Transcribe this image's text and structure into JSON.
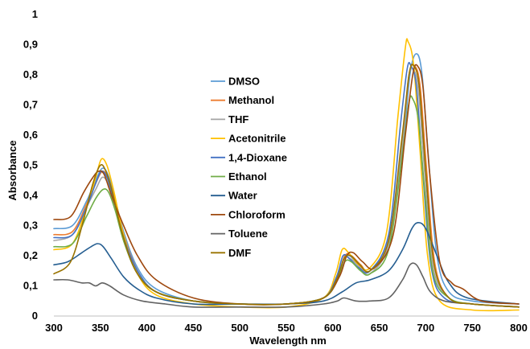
{
  "chart_data": {
    "type": "line",
    "xlabel": "Wavelength nm",
    "ylabel": "Absorbance",
    "xlim": [
      300,
      800
    ],
    "ylim": [
      0,
      1
    ],
    "x_ticks": [
      300,
      350,
      400,
      450,
      500,
      550,
      600,
      650,
      700,
      750,
      800
    ],
    "y_ticks": [
      "0",
      "0,1",
      "0,2",
      "0,3",
      "0,4",
      "0,5",
      "0,6",
      "0,7",
      "0,8",
      "0,9",
      "1"
    ],
    "grid": false,
    "legend_position": "center-left",
    "series": [
      {
        "name": "DMSO",
        "color": "#5b9bd5",
        "points": [
          [
            300,
            0.29
          ],
          [
            320,
            0.3
          ],
          [
            335,
            0.38
          ],
          [
            345,
            0.45
          ],
          [
            352,
            0.49
          ],
          [
            358,
            0.47
          ],
          [
            365,
            0.4
          ],
          [
            375,
            0.28
          ],
          [
            390,
            0.16
          ],
          [
            410,
            0.09
          ],
          [
            450,
            0.05
          ],
          [
            500,
            0.04
          ],
          [
            550,
            0.04
          ],
          [
            590,
            0.06
          ],
          [
            605,
            0.12
          ],
          [
            612,
            0.19
          ],
          [
            618,
            0.2
          ],
          [
            628,
            0.17
          ],
          [
            640,
            0.15
          ],
          [
            660,
            0.24
          ],
          [
            675,
            0.55
          ],
          [
            683,
            0.8
          ],
          [
            690,
            0.87
          ],
          [
            696,
            0.8
          ],
          [
            703,
            0.52
          ],
          [
            712,
            0.2
          ],
          [
            725,
            0.08
          ],
          [
            750,
            0.05
          ],
          [
            800,
            0.04
          ]
        ]
      },
      {
        "name": "Methanol",
        "color": "#ed7d31",
        "points": [
          [
            300,
            0.27
          ],
          [
            320,
            0.28
          ],
          [
            335,
            0.37
          ],
          [
            345,
            0.44
          ],
          [
            352,
            0.48
          ],
          [
            358,
            0.46
          ],
          [
            365,
            0.39
          ],
          [
            375,
            0.27
          ],
          [
            390,
            0.15
          ],
          [
            410,
            0.08
          ],
          [
            450,
            0.05
          ],
          [
            500,
            0.04
          ],
          [
            550,
            0.04
          ],
          [
            590,
            0.06
          ],
          [
            605,
            0.13
          ],
          [
            613,
            0.2
          ],
          [
            620,
            0.2
          ],
          [
            630,
            0.17
          ],
          [
            640,
            0.15
          ],
          [
            660,
            0.25
          ],
          [
            675,
            0.58
          ],
          [
            682,
            0.8
          ],
          [
            688,
            0.83
          ],
          [
            694,
            0.76
          ],
          [
            701,
            0.48
          ],
          [
            710,
            0.17
          ],
          [
            725,
            0.06
          ],
          [
            750,
            0.04
          ],
          [
            800,
            0.03
          ]
        ]
      },
      {
        "name": "THF",
        "color": "#a5a5a5",
        "points": [
          [
            300,
            0.25
          ],
          [
            320,
            0.27
          ],
          [
            335,
            0.36
          ],
          [
            345,
            0.42
          ],
          [
            352,
            0.46
          ],
          [
            358,
            0.44
          ],
          [
            365,
            0.37
          ],
          [
            375,
            0.25
          ],
          [
            390,
            0.14
          ],
          [
            410,
            0.08
          ],
          [
            450,
            0.05
          ],
          [
            500,
            0.04
          ],
          [
            550,
            0.04
          ],
          [
            590,
            0.06
          ],
          [
            605,
            0.12
          ],
          [
            612,
            0.19
          ],
          [
            619,
            0.19
          ],
          [
            630,
            0.16
          ],
          [
            640,
            0.14
          ],
          [
            660,
            0.24
          ],
          [
            675,
            0.57
          ],
          [
            681,
            0.78
          ],
          [
            686,
            0.82
          ],
          [
            692,
            0.75
          ],
          [
            699,
            0.47
          ],
          [
            708,
            0.16
          ],
          [
            725,
            0.06
          ],
          [
            750,
            0.04
          ],
          [
            800,
            0.03
          ]
        ]
      },
      {
        "name": "Acetonitrile",
        "color": "#ffc000",
        "points": [
          [
            300,
            0.22
          ],
          [
            320,
            0.24
          ],
          [
            335,
            0.36
          ],
          [
            345,
            0.46
          ],
          [
            351,
            0.52
          ],
          [
            357,
            0.5
          ],
          [
            364,
            0.42
          ],
          [
            375,
            0.27
          ],
          [
            390,
            0.14
          ],
          [
            410,
            0.07
          ],
          [
            450,
            0.04
          ],
          [
            500,
            0.03
          ],
          [
            550,
            0.03
          ],
          [
            590,
            0.06
          ],
          [
            603,
            0.14
          ],
          [
            610,
            0.22
          ],
          [
            617,
            0.21
          ],
          [
            628,
            0.17
          ],
          [
            640,
            0.16
          ],
          [
            658,
            0.28
          ],
          [
            670,
            0.66
          ],
          [
            678,
            0.89
          ],
          [
            681,
            0.91
          ],
          [
            687,
            0.83
          ],
          [
            694,
            0.54
          ],
          [
            702,
            0.2
          ],
          [
            715,
            0.05
          ],
          [
            750,
            0.02
          ],
          [
            800,
            0.02
          ]
        ]
      },
      {
        "name": "1,4-Dioxane",
        "color": "#4472c4",
        "points": [
          [
            300,
            0.26
          ],
          [
            320,
            0.27
          ],
          [
            335,
            0.36
          ],
          [
            345,
            0.44
          ],
          [
            351,
            0.48
          ],
          [
            357,
            0.46
          ],
          [
            364,
            0.39
          ],
          [
            375,
            0.26
          ],
          [
            390,
            0.15
          ],
          [
            410,
            0.08
          ],
          [
            450,
            0.05
          ],
          [
            500,
            0.04
          ],
          [
            550,
            0.04
          ],
          [
            590,
            0.06
          ],
          [
            604,
            0.13
          ],
          [
            611,
            0.2
          ],
          [
            618,
            0.19
          ],
          [
            628,
            0.16
          ],
          [
            640,
            0.15
          ],
          [
            660,
            0.27
          ],
          [
            673,
            0.64
          ],
          [
            680,
            0.82
          ],
          [
            684,
            0.83
          ],
          [
            690,
            0.76
          ],
          [
            697,
            0.47
          ],
          [
            706,
            0.16
          ],
          [
            720,
            0.06
          ],
          [
            750,
            0.04
          ],
          [
            800,
            0.03
          ]
        ]
      },
      {
        "name": "Ethanol",
        "color": "#70ad47",
        "points": [
          [
            300,
            0.23
          ],
          [
            320,
            0.24
          ],
          [
            335,
            0.33
          ],
          [
            345,
            0.39
          ],
          [
            353,
            0.42
          ],
          [
            359,
            0.41
          ],
          [
            366,
            0.35
          ],
          [
            376,
            0.24
          ],
          [
            390,
            0.14
          ],
          [
            410,
            0.08
          ],
          [
            450,
            0.05
          ],
          [
            500,
            0.04
          ],
          [
            550,
            0.04
          ],
          [
            590,
            0.06
          ],
          [
            605,
            0.12
          ],
          [
            613,
            0.18
          ],
          [
            620,
            0.18
          ],
          [
            630,
            0.15
          ],
          [
            640,
            0.14
          ],
          [
            660,
            0.22
          ],
          [
            675,
            0.54
          ],
          [
            682,
            0.71
          ],
          [
            686,
            0.72
          ],
          [
            692,
            0.65
          ],
          [
            699,
            0.41
          ],
          [
            708,
            0.14
          ],
          [
            725,
            0.06
          ],
          [
            750,
            0.04
          ],
          [
            800,
            0.03
          ]
        ]
      },
      {
        "name": "Water",
        "color": "#255e91",
        "points": [
          [
            300,
            0.17
          ],
          [
            315,
            0.18
          ],
          [
            330,
            0.21
          ],
          [
            340,
            0.23
          ],
          [
            347,
            0.24
          ],
          [
            353,
            0.23
          ],
          [
            362,
            0.19
          ],
          [
            375,
            0.13
          ],
          [
            390,
            0.09
          ],
          [
            410,
            0.06
          ],
          [
            450,
            0.04
          ],
          [
            500,
            0.04
          ],
          [
            550,
            0.04
          ],
          [
            590,
            0.05
          ],
          [
            610,
            0.08
          ],
          [
            625,
            0.11
          ],
          [
            640,
            0.12
          ],
          [
            660,
            0.15
          ],
          [
            675,
            0.22
          ],
          [
            685,
            0.29
          ],
          [
            692,
            0.31
          ],
          [
            700,
            0.29
          ],
          [
            712,
            0.2
          ],
          [
            725,
            0.11
          ],
          [
            745,
            0.06
          ],
          [
            800,
            0.04
          ]
        ]
      },
      {
        "name": "Chloroform",
        "color": "#9e480e",
        "points": [
          [
            300,
            0.32
          ],
          [
            318,
            0.33
          ],
          [
            332,
            0.41
          ],
          [
            342,
            0.46
          ],
          [
            348,
            0.48
          ],
          [
            354,
            0.47
          ],
          [
            362,
            0.4
          ],
          [
            375,
            0.3
          ],
          [
            390,
            0.2
          ],
          [
            410,
            0.12
          ],
          [
            450,
            0.06
          ],
          [
            500,
            0.04
          ],
          [
            550,
            0.04
          ],
          [
            590,
            0.06
          ],
          [
            607,
            0.13
          ],
          [
            615,
            0.2
          ],
          [
            622,
            0.21
          ],
          [
            632,
            0.18
          ],
          [
            645,
            0.16
          ],
          [
            665,
            0.27
          ],
          [
            678,
            0.6
          ],
          [
            686,
            0.8
          ],
          [
            691,
            0.83
          ],
          [
            697,
            0.76
          ],
          [
            704,
            0.48
          ],
          [
            715,
            0.18
          ],
          [
            728,
            0.11
          ],
          [
            740,
            0.09
          ],
          [
            760,
            0.05
          ],
          [
            800,
            0.04
          ]
        ]
      },
      {
        "name": "Toluene",
        "color": "#636363",
        "points": [
          [
            300,
            0.12
          ],
          [
            315,
            0.12
          ],
          [
            330,
            0.11
          ],
          [
            338,
            0.11
          ],
          [
            345,
            0.1
          ],
          [
            352,
            0.11
          ],
          [
            360,
            0.1
          ],
          [
            375,
            0.07
          ],
          [
            395,
            0.05
          ],
          [
            420,
            0.04
          ],
          [
            450,
            0.03
          ],
          [
            500,
            0.03
          ],
          [
            550,
            0.03
          ],
          [
            590,
            0.04
          ],
          [
            605,
            0.05
          ],
          [
            612,
            0.06
          ],
          [
            625,
            0.05
          ],
          [
            640,
            0.05
          ],
          [
            660,
            0.06
          ],
          [
            675,
            0.12
          ],
          [
            683,
            0.17
          ],
          [
            690,
            0.17
          ],
          [
            697,
            0.13
          ],
          [
            705,
            0.08
          ],
          [
            720,
            0.05
          ],
          [
            750,
            0.04
          ],
          [
            800,
            0.03
          ]
        ]
      },
      {
        "name": "DMF",
        "color": "#997300",
        "points": [
          [
            300,
            0.14
          ],
          [
            318,
            0.18
          ],
          [
            332,
            0.32
          ],
          [
            342,
            0.44
          ],
          [
            350,
            0.5
          ],
          [
            356,
            0.48
          ],
          [
            363,
            0.41
          ],
          [
            373,
            0.28
          ],
          [
            388,
            0.15
          ],
          [
            410,
            0.08
          ],
          [
            450,
            0.05
          ],
          [
            500,
            0.04
          ],
          [
            550,
            0.04
          ],
          [
            590,
            0.06
          ],
          [
            604,
            0.12
          ],
          [
            612,
            0.19
          ],
          [
            619,
            0.2
          ],
          [
            629,
            0.17
          ],
          [
            640,
            0.15
          ],
          [
            660,
            0.25
          ],
          [
            674,
            0.58
          ],
          [
            682,
            0.8
          ],
          [
            687,
            0.83
          ],
          [
            693,
            0.76
          ],
          [
            700,
            0.48
          ],
          [
            709,
            0.17
          ],
          [
            725,
            0.06
          ],
          [
            750,
            0.04
          ],
          [
            800,
            0.03
          ]
        ]
      }
    ]
  }
}
